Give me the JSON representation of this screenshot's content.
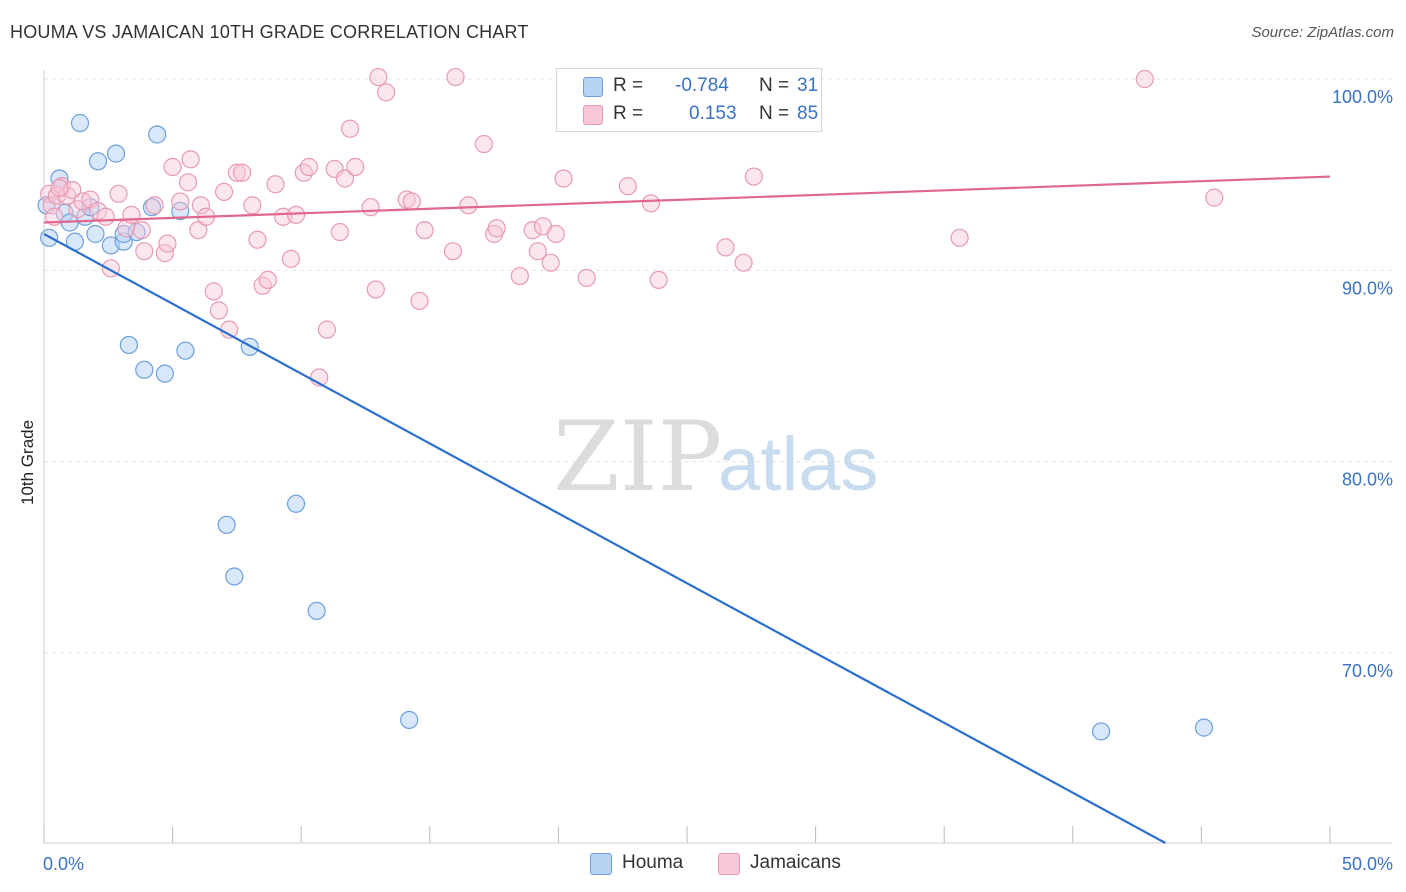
{
  "header": {
    "title": "HOUMA VS JAMAICAN 10TH GRADE CORRELATION CHART",
    "source": "Source: ZipAtlas.com"
  },
  "watermark": {
    "zip": "ZIP",
    "atlas": "atlas"
  },
  "legend": {
    "rows": [
      {
        "r_label": "R =",
        "r_value": "-0.784",
        "n_label": "N =",
        "n_value": "31"
      },
      {
        "r_label": "R =",
        "r_value": "0.153",
        "n_label": "N =",
        "n_value": "85"
      }
    ]
  },
  "colors": {
    "houma_fill": "#b8d4f5",
    "houma_stroke": "#6d9fdc",
    "houma_line": "#2c70cf",
    "jam_fill": "#f8c8d8",
    "jam_stroke": "#e79ab4",
    "jam_line": "#e0678f",
    "tick_text": "#3a72c4",
    "grid": "#e6e6e6"
  },
  "chart_data": {
    "type": "scatter",
    "xlabel": "",
    "ylabel": "10th Grade",
    "xlim": [
      0,
      50
    ],
    "ylim": [
      60,
      101.5
    ],
    "x_tick_labels": [
      {
        "value": 0,
        "label": "0.0%"
      },
      {
        "value": 50,
        "label": "50.0%"
      }
    ],
    "y_tick_labels": [
      {
        "value": 100,
        "label": "100.0%"
      },
      {
        "value": 90,
        "label": "90.0%"
      },
      {
        "value": 80,
        "label": "80.0%"
      },
      {
        "value": 70,
        "label": "70.0%"
      }
    ],
    "legend_position": "top-center",
    "grid": true,
    "series": [
      {
        "name": "Houma",
        "points": [
          [
            0.2,
            91.7
          ],
          [
            0.6,
            94.8
          ],
          [
            0.8,
            93.0
          ],
          [
            1.0,
            92.5
          ],
          [
            1.2,
            91.5
          ],
          [
            1.4,
            97.7
          ],
          [
            1.6,
            92.8
          ],
          [
            1.8,
            93.3
          ],
          [
            2.0,
            91.9
          ],
          [
            2.1,
            95.7
          ],
          [
            2.6,
            91.3
          ],
          [
            2.8,
            96.1
          ],
          [
            3.1,
            91.5
          ],
          [
            3.1,
            91.9
          ],
          [
            3.3,
            86.1
          ],
          [
            3.6,
            92.0
          ],
          [
            3.9,
            84.8
          ],
          [
            4.2,
            93.3
          ],
          [
            4.4,
            97.1
          ],
          [
            4.7,
            84.6
          ],
          [
            5.3,
            93.1
          ],
          [
            5.5,
            85.8
          ],
          [
            7.1,
            76.7
          ],
          [
            7.4,
            74.0
          ],
          [
            8.0,
            86.0
          ],
          [
            9.8,
            77.8
          ],
          [
            10.6,
            72.2
          ],
          [
            14.2,
            66.5
          ],
          [
            41.1,
            65.9
          ],
          [
            45.1,
            66.1
          ],
          [
            0.1,
            93.4
          ]
        ],
        "trend": {
          "x": [
            0,
            43.6
          ],
          "y": [
            91.9,
            60.0
          ]
        }
      },
      {
        "name": "Jamaicans",
        "points": [
          [
            0.2,
            94.0
          ],
          [
            0.3,
            93.4
          ],
          [
            0.4,
            92.8
          ],
          [
            0.5,
            93.9
          ],
          [
            0.7,
            94.4
          ],
          [
            0.9,
            93.9
          ],
          [
            1.1,
            94.2
          ],
          [
            1.3,
            93.2
          ],
          [
            1.5,
            93.6
          ],
          [
            1.8,
            93.7
          ],
          [
            2.1,
            93.1
          ],
          [
            2.4,
            92.8
          ],
          [
            2.6,
            90.1
          ],
          [
            2.9,
            94.0
          ],
          [
            3.2,
            92.2
          ],
          [
            3.4,
            92.9
          ],
          [
            3.8,
            92.1
          ],
          [
            3.9,
            91.0
          ],
          [
            4.3,
            93.4
          ],
          [
            4.7,
            90.9
          ],
          [
            4.8,
            91.4
          ],
          [
            5.0,
            95.4
          ],
          [
            5.3,
            93.6
          ],
          [
            5.6,
            94.6
          ],
          [
            5.7,
            95.8
          ],
          [
            6.0,
            92.1
          ],
          [
            6.1,
            93.4
          ],
          [
            6.3,
            92.8
          ],
          [
            6.6,
            88.9
          ],
          [
            6.8,
            87.9
          ],
          [
            7.0,
            94.1
          ],
          [
            7.2,
            86.9
          ],
          [
            7.5,
            95.1
          ],
          [
            7.7,
            95.1
          ],
          [
            8.1,
            93.4
          ],
          [
            8.3,
            91.6
          ],
          [
            8.5,
            89.2
          ],
          [
            8.7,
            89.5
          ],
          [
            9.0,
            94.5
          ],
          [
            9.3,
            92.8
          ],
          [
            9.6,
            90.6
          ],
          [
            9.8,
            92.9
          ],
          [
            10.1,
            95.1
          ],
          [
            10.3,
            95.4
          ],
          [
            10.7,
            84.4
          ],
          [
            11.0,
            86.9
          ],
          [
            11.3,
            95.3
          ],
          [
            11.5,
            92.0
          ],
          [
            11.7,
            94.8
          ],
          [
            11.9,
            97.4
          ],
          [
            12.1,
            95.4
          ],
          [
            12.7,
            93.3
          ],
          [
            12.9,
            89.0
          ],
          [
            13.0,
            100.1
          ],
          [
            13.3,
            99.3
          ],
          [
            14.1,
            93.7
          ],
          [
            14.3,
            93.6
          ],
          [
            14.6,
            88.4
          ],
          [
            14.8,
            92.1
          ],
          [
            15.9,
            91.0
          ],
          [
            16.0,
            100.1
          ],
          [
            16.5,
            93.4
          ],
          [
            17.1,
            96.6
          ],
          [
            17.5,
            91.9
          ],
          [
            17.6,
            92.2
          ],
          [
            18.5,
            89.7
          ],
          [
            19.0,
            92.1
          ],
          [
            19.2,
            91.0
          ],
          [
            19.4,
            92.3
          ],
          [
            19.7,
            90.4
          ],
          [
            19.9,
            91.9
          ],
          [
            20.2,
            94.8
          ],
          [
            21.1,
            89.6
          ],
          [
            22.7,
            94.4
          ],
          [
            23.6,
            93.5
          ],
          [
            23.9,
            89.5
          ],
          [
            26.5,
            91.2
          ],
          [
            26.9,
            100.0
          ],
          [
            27.2,
            90.4
          ],
          [
            27.6,
            94.9
          ],
          [
            28.0,
            100.0
          ],
          [
            35.6,
            91.7
          ],
          [
            42.8,
            100.0
          ],
          [
            45.5,
            93.8
          ],
          [
            0.6,
            94.3
          ]
        ],
        "trend": {
          "x": [
            0,
            50
          ],
          "y": [
            92.5,
            94.9
          ]
        }
      }
    ]
  }
}
